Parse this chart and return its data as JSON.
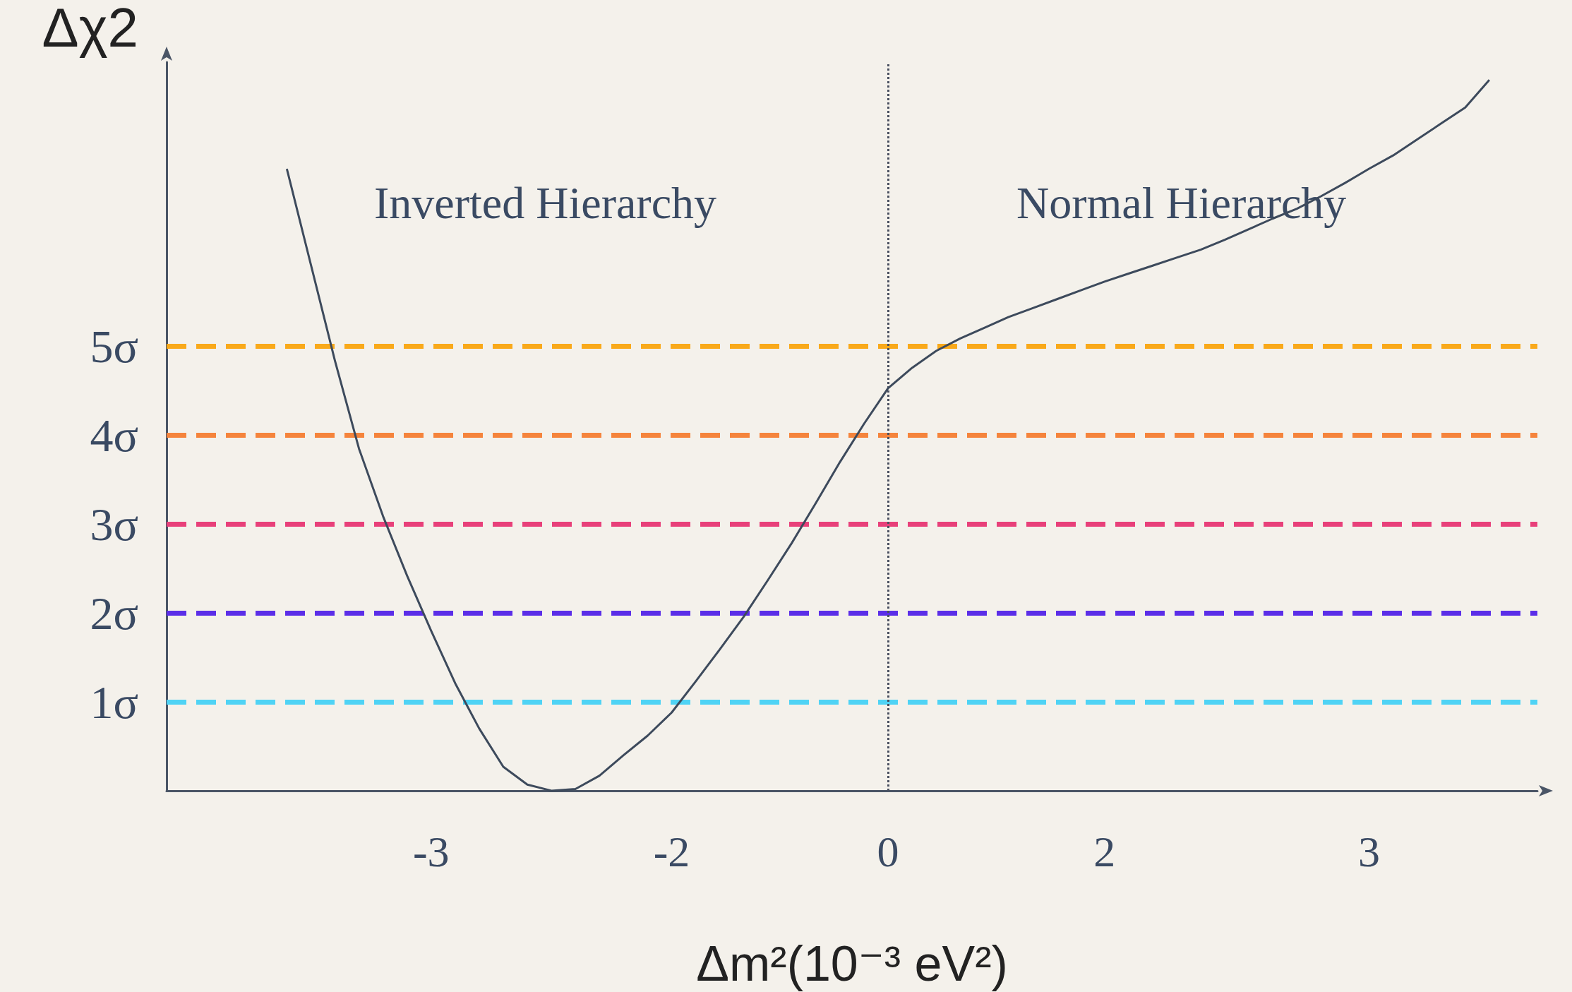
{
  "chart_data": {
    "type": "line",
    "xlabel": "Δm²(10⁻³ eV²)",
    "ylabel": "Δχ2",
    "annotations": [
      "Inverted Hierarchy",
      "Normal Hierarchy"
    ],
    "categories": [
      null,
      null,
      null,
      null,
      null,
      null,
      null,
      null,
      null,
      null,
      null,
      "-3",
      null,
      null,
      null,
      null,
      null,
      null,
      null,
      null,
      null,
      "-2",
      null,
      null,
      null,
      null,
      null,
      null,
      null,
      null,
      "0",
      null,
      null,
      null,
      null,
      null,
      null,
      null,
      null,
      "2",
      null,
      null,
      null,
      null,
      null,
      null,
      null,
      null,
      null,
      null,
      "3",
      null,
      null,
      null,
      null,
      null,
      null,
      null
    ],
    "series": [
      {
        "color": "#3d4a5c",
        "values": [
          null,
          null,
          null,
          null,
          null,
          7.0,
          5.92,
          4.84,
          3.85,
          3.09,
          2.42,
          1.8,
          1.21,
          0.7,
          0.27,
          0.07,
          0.0,
          0.02,
          0.17,
          0.4,
          0.62,
          0.88,
          1.23,
          1.59,
          1.96,
          2.37,
          2.79,
          3.24,
          3.7,
          4.13,
          4.53,
          4.76,
          4.95,
          5.09,
          5.21,
          5.33,
          5.43,
          5.53,
          5.63,
          5.73,
          5.82,
          5.91,
          6.0,
          6.09,
          6.2,
          6.32,
          6.44,
          6.55,
          6.69,
          6.84,
          7.0,
          7.15,
          7.33,
          7.51,
          7.69,
          8.0,
          null,
          null
        ]
      }
    ],
    "ylim": [
      0,
      8.2
    ],
    "yticks": [
      {
        "value": 1,
        "label": "1σ"
      },
      {
        "value": 2,
        "label": "2σ"
      },
      {
        "value": 3,
        "label": "3σ"
      },
      {
        "value": 4,
        "label": "4σ"
      },
      {
        "value": 5,
        "label": "5σ"
      }
    ],
    "ref_lines": [
      {
        "axis": "y",
        "value": 1,
        "color": "#4fd3f5",
        "line_style": "dashed"
      },
      {
        "axis": "y",
        "value": 2,
        "color": "#5b2ee8",
        "line_style": "dashed"
      },
      {
        "axis": "y",
        "value": 3,
        "color": "#e8407a",
        "line_style": "dashed"
      },
      {
        "axis": "y",
        "value": 4,
        "color": "#f5843c",
        "line_style": "dashed"
      },
      {
        "axis": "y",
        "value": 5,
        "color": "#f9a91a",
        "line_style": "dashed"
      },
      {
        "axis": "x",
        "value": "0",
        "color": "#4a5060",
        "line_style": "dotted"
      }
    ],
    "marker": "none",
    "line_style": "solid"
  }
}
